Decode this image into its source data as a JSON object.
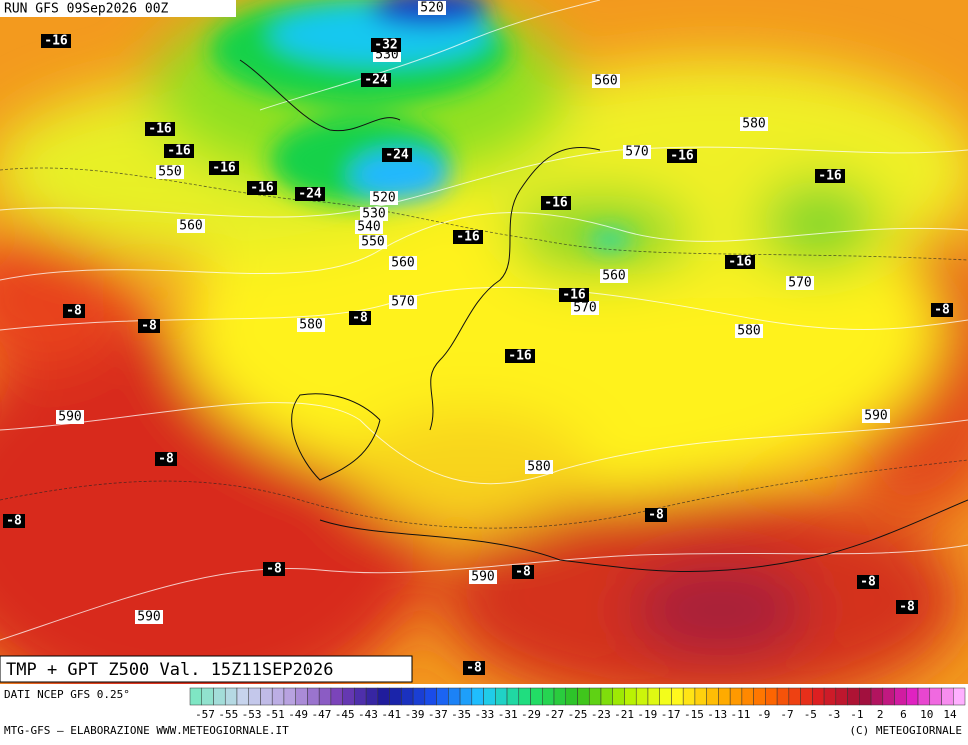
{
  "header": {
    "run": "RUN GFS 09Sep2026 00Z"
  },
  "map": {
    "title": "TMP + GPT Z500 Val. 15Z11SEP2026",
    "temperature_labels": [
      "-16",
      "-32",
      "-24",
      "-16",
      "-16",
      "-16",
      "-16",
      "-24",
      "-24",
      "-16",
      "-16",
      "-16",
      "-16",
      "-16",
      "-16",
      "-8",
      "-8",
      "-8",
      "-8",
      "-16",
      "-8",
      "-8",
      "-8",
      "-8",
      "-8",
      "-8",
      "-8",
      "-8"
    ],
    "height_labels": [
      "520",
      "530",
      "560",
      "580",
      "570",
      "550",
      "520",
      "530",
      "540",
      "550",
      "560",
      "560",
      "560",
      "570",
      "570",
      "570",
      "580",
      "580",
      "590",
      "590",
      "580",
      "590",
      "590"
    ]
  },
  "legend": {
    "source": "DATI NCEP GFS 0.25°",
    "ticks": [
      "-57",
      "-55",
      "-53",
      "-51",
      "-49",
      "-47",
      "-45",
      "-43",
      "-41",
      "-39",
      "-37",
      "-35",
      "-33",
      "-31",
      "-29",
      "-27",
      "-25",
      "-23",
      "-21",
      "-19",
      "-17",
      "-15",
      "-13",
      "-11",
      "-9",
      "-7",
      "-5",
      "-3",
      "-1",
      "2",
      "6",
      "10",
      "14"
    ]
  },
  "footer": {
    "left": "MTG-GFS — ELABORAZIONE WWW.METEOGIORNALE.IT",
    "right": "(C) METEOGIORNALE"
  }
}
